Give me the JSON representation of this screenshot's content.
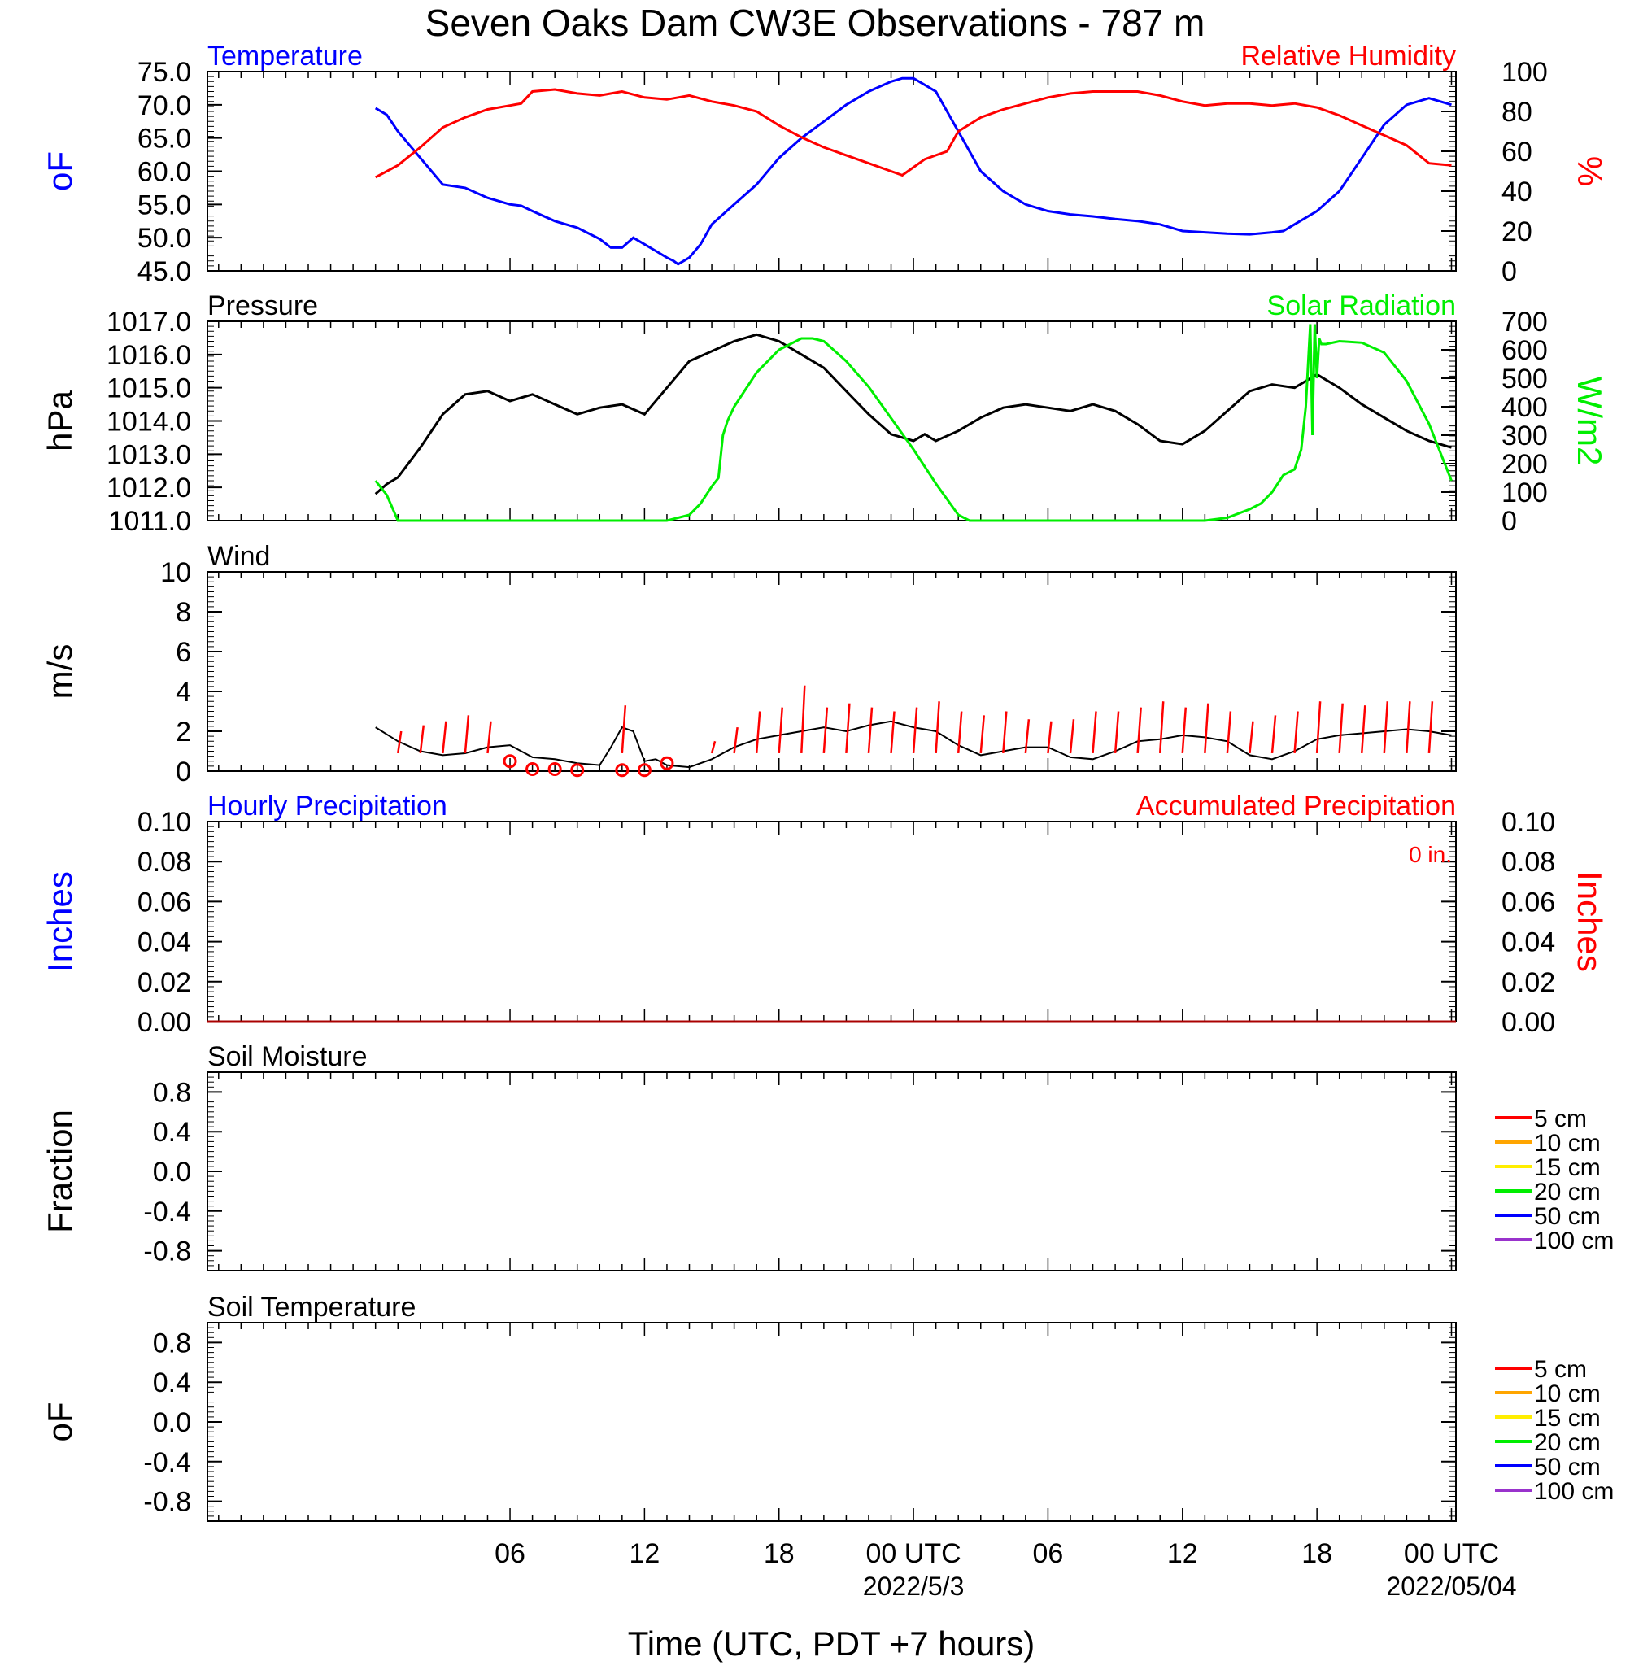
{
  "chart_data": {
    "type": "line",
    "title": "Seven Oaks Dam CW3E Observations - 787 m",
    "xlabel": "Time (UTC, PDT +7 hours)",
    "x_range_hours": [
      -7.5,
      48.2
    ],
    "x_ticks": [
      {
        "h": 6,
        "label": "06",
        "date": ""
      },
      {
        "h": 12,
        "label": "12",
        "date": ""
      },
      {
        "h": 18,
        "label": "18",
        "date": ""
      },
      {
        "h": 24,
        "label": "00 UTC",
        "date": "2022/5/3"
      },
      {
        "h": 30,
        "label": "06",
        "date": ""
      },
      {
        "h": 36,
        "label": "12",
        "date": ""
      },
      {
        "h": 42,
        "label": "18",
        "date": ""
      },
      {
        "h": 48,
        "label": "00 UTC",
        "date": "2022/05/04"
      }
    ],
    "panels": [
      {
        "id": "temperature",
        "left_title": "Temperature",
        "left_title_color": "#0000ff",
        "right_title": "Relative Humidity",
        "right_title_color": "#ff0000",
        "ylabel_left": "oF",
        "ylabel_left_color": "#0000ff",
        "ylabel_right": "%",
        "ylabel_right_color": "#ff0000",
        "ylim_left": [
          45,
          75
        ],
        "yticks_left": [
          "45.0",
          "50.0",
          "55.0",
          "60.0",
          "65.0",
          "70.0",
          "75.0"
        ],
        "ylim_right": [
          0,
          100
        ],
        "yticks_right": [
          "0",
          "20",
          "40",
          "60",
          "80",
          "100"
        ],
        "series": [
          {
            "name": "Temperature",
            "axis": "left",
            "color": "#0000ff",
            "x": [
              0,
              0.5,
              1,
              1.5,
              2,
              2.5,
              3,
              4,
              5,
              6,
              6.5,
              7,
              8,
              9,
              10,
              10.5,
              11,
              11.5,
              12,
              12.5,
              13,
              13.3,
              13.5,
              14,
              14.5,
              15,
              16,
              17,
              18,
              19,
              20,
              21,
              22,
              23,
              23.5,
              24,
              24.5,
              25,
              25.5,
              26,
              27,
              28,
              29,
              30,
              31,
              32,
              33,
              34,
              35,
              36,
              37,
              38,
              39,
              40,
              40.5,
              41,
              42,
              43,
              44,
              45,
              46,
              47,
              48
            ],
            "values": [
              69.5,
              68.5,
              66,
              64,
              62,
              60,
              58,
              57.5,
              56,
              55,
              54.8,
              54,
              52.5,
              51.5,
              49.8,
              48.5,
              48.5,
              50,
              49,
              48,
              47,
              46.5,
              46,
              47,
              49,
              52,
              55,
              58,
              62,
              65,
              67.5,
              70,
              72,
              73.5,
              74,
              74,
              73,
              72,
              69,
              66,
              60,
              57,
              55,
              54,
              53.5,
              53.2,
              52.8,
              52.5,
              52,
              51,
              50.8,
              50.6,
              50.5,
              50.8,
              51,
              52,
              54,
              57,
              62,
              67,
              70,
              71,
              70
            ]
          },
          {
            "name": "Relative Humidity",
            "axis": "right",
            "color": "#ff0000",
            "x": [
              0,
              1,
              2,
              3,
              4,
              5,
              6,
              6.5,
              7,
              8,
              9,
              10,
              11,
              12,
              13,
              14,
              15,
              16,
              17,
              18,
              19,
              20,
              21,
              22,
              23,
              23.5,
              24,
              24.5,
              25,
              25.5,
              26,
              27,
              28,
              29,
              30,
              31,
              32,
              33,
              34,
              35,
              36,
              37,
              38,
              39,
              40,
              41,
              42,
              43,
              44,
              45,
              46,
              47,
              48
            ],
            "values": [
              47,
              53,
              62,
              72,
              77,
              81,
              83,
              84,
              90,
              91,
              89,
              88,
              90,
              87,
              86,
              88,
              85,
              83,
              80,
              73,
              67,
              62,
              58,
              54,
              50,
              48,
              52,
              56,
              58,
              60,
              70,
              77,
              81,
              84,
              87,
              89,
              90,
              90,
              90,
              88,
              85,
              83,
              84,
              84,
              83,
              84,
              82,
              78,
              73,
              68,
              63,
              54,
              53
            ]
          }
        ]
      },
      {
        "id": "pressure",
        "left_title": "Pressure",
        "left_title_color": "#000000",
        "right_title": "Solar Radiation",
        "right_title_color": "#00ee00",
        "ylabel_left": "hPa",
        "ylabel_left_color": "#000000",
        "ylabel_right": "W/m2",
        "ylabel_right_color": "#00ee00",
        "ylim_left": [
          1011,
          1017
        ],
        "yticks_left": [
          "1011.0",
          "1012.0",
          "1013.0",
          "1014.0",
          "1015.0",
          "1016.0",
          "1017.0"
        ],
        "ylim_right": [
          0,
          700
        ],
        "yticks_right": [
          "0",
          "100",
          "200",
          "300",
          "400",
          "500",
          "600",
          "700"
        ],
        "series": [
          {
            "name": "Pressure",
            "axis": "left",
            "color": "#000000",
            "x": [
              0,
              0.5,
              1,
              2,
              3,
              4,
              5,
              6,
              7,
              8,
              9,
              10,
              11,
              12,
              13,
              14,
              15,
              16,
              17,
              18,
              19,
              20,
              21,
              22,
              23,
              24,
              24.5,
              25,
              26,
              27,
              28,
              29,
              30,
              31,
              32,
              33,
              34,
              35,
              36,
              37,
              38,
              39,
              40,
              41,
              42,
              43,
              44,
              45,
              46,
              47,
              48
            ],
            "values": [
              1011.8,
              1012.1,
              1012.3,
              1013.2,
              1014.2,
              1014.8,
              1014.9,
              1014.6,
              1014.8,
              1014.5,
              1014.2,
              1014.4,
              1014.5,
              1014.2,
              1015.0,
              1015.8,
              1016.1,
              1016.4,
              1016.6,
              1016.4,
              1016,
              1015.6,
              1014.9,
              1014.2,
              1013.6,
              1013.4,
              1013.6,
              1013.4,
              1013.7,
              1014.1,
              1014.4,
              1014.5,
              1014.4,
              1014.3,
              1014.5,
              1014.3,
              1013.9,
              1013.4,
              1013.3,
              1013.7,
              1014.3,
              1014.9,
              1015.1,
              1015.0,
              1015.4,
              1015.0,
              1014.5,
              1014.1,
              1013.7,
              1013.4,
              1013.2
            ]
          },
          {
            "name": "Solar Radiation",
            "axis": "right",
            "color": "#00ee00",
            "x": [
              0,
              0.5,
              1,
              1.5,
              2,
              5,
              8,
              10,
              12,
              13,
              14,
              14.5,
              15,
              15.3,
              15.5,
              15.7,
              16,
              17,
              18,
              19,
              19.5,
              20,
              21,
              22,
              23,
              24,
              25,
              26,
              26.5,
              27,
              30,
              33,
              36,
              37,
              38,
              39,
              39.5,
              40,
              40.5,
              41,
              41.3,
              41.5,
              41.7,
              41.8,
              41.9,
              42.0,
              42.1,
              42.2,
              42.4,
              43,
              44,
              45,
              46,
              47,
              48
            ],
            "values": [
              140,
              90,
              0,
              0,
              0,
              0,
              0,
              0,
              0,
              0,
              20,
              60,
              120,
              150,
              300,
              350,
              400,
              520,
              600,
              640,
              640,
              630,
              560,
              470,
              360,
              250,
              130,
              20,
              0,
              0,
              0,
              0,
              0,
              0,
              10,
              40,
              60,
              100,
              160,
              180,
              250,
              400,
              690,
              300,
              690,
              500,
              640,
              620,
              620,
              630,
              625,
              590,
              490,
              340,
              140
            ]
          }
        ]
      },
      {
        "id": "wind",
        "left_title": "Wind",
        "left_title_color": "#000000",
        "ylabel_left": "m/s",
        "ylabel_left_color": "#000000",
        "ylim_left": [
          0,
          10
        ],
        "yticks_left": [
          "0",
          "2",
          "4",
          "6",
          "8",
          "10"
        ],
        "series": [
          {
            "name": "Wind",
            "axis": "left",
            "color": "#000000",
            "x": [
              0,
              1,
              2,
              3,
              4,
              5,
              6,
              7,
              8,
              9,
              10,
              10.5,
              11,
              11.5,
              12,
              12.5,
              13,
              14,
              15,
              16,
              17,
              18,
              19,
              20,
              21,
              22,
              23,
              24,
              25,
              26,
              27,
              28,
              29,
              30,
              31,
              32,
              33,
              34,
              35,
              36,
              37,
              38,
              39,
              40,
              41,
              42,
              43,
              44,
              45,
              46,
              47,
              48
            ],
            "values": [
              2.2,
              1.5,
              1.0,
              0.8,
              0.9,
              1.2,
              1.3,
              0.7,
              0.6,
              0.4,
              0.3,
              1.2,
              2.2,
              2.0,
              0.5,
              0.6,
              0.3,
              0.2,
              0.6,
              1.2,
              1.6,
              1.8,
              2.0,
              2.2,
              2.0,
              2.3,
              2.5,
              2.2,
              2.0,
              1.3,
              0.8,
              1.0,
              1.2,
              1.2,
              0.7,
              0.6,
              1.0,
              1.5,
              1.6,
              1.8,
              1.7,
              1.5,
              0.8,
              0.6,
              1.0,
              1.6,
              1.8,
              1.9,
              2.0,
              2.1,
              2.0,
              1.8
            ]
          },
          {
            "name": "Wind barbs",
            "axis": "left",
            "color": "#ff0000",
            "x": [
              1,
              2,
              3,
              4,
              5,
              11,
              15,
              16,
              17,
              18,
              19,
              20,
              21,
              22,
              23,
              24,
              25,
              26,
              27,
              28,
              29,
              30,
              31,
              32,
              33,
              34,
              35,
              36,
              37,
              38,
              39,
              40,
              41,
              42,
              43,
              44,
              45,
              46,
              47
            ],
            "values": [
              2.0,
              2.3,
              2.5,
              2.8,
              2.5,
              3.3,
              1.5,
              2.2,
              3.0,
              3.2,
              4.3,
              3.2,
              3.4,
              3.2,
              3.0,
              3.2,
              3.5,
              3.0,
              2.8,
              3.0,
              2.6,
              2.5,
              2.6,
              3.0,
              3.0,
              3.2,
              3.5,
              3.2,
              3.4,
              3.0,
              2.5,
              2.8,
              3.0,
              3.5,
              3.4,
              3.3,
              3.5,
              3.5,
              3.5
            ]
          },
          {
            "name": "Calm",
            "axis": "left",
            "color": "#ff0000",
            "x": [
              6,
              7,
              8,
              9,
              11,
              12,
              13
            ],
            "values": [
              0.5,
              0.1,
              0.1,
              0.05,
              0.05,
              0.05,
              0.4
            ]
          }
        ]
      },
      {
        "id": "precip",
        "left_title": "Hourly Precipitation",
        "left_title_color": "#0000ff",
        "right_title": "Accumulated Precipitation",
        "right_title_color": "#ff0000",
        "right_note": "0 in.",
        "ylabel_left": "Inches",
        "ylabel_left_color": "#0000ff",
        "ylabel_right": "Inches",
        "ylabel_right_color": "#ff0000",
        "ylim_left": [
          0,
          0.1
        ],
        "yticks_left": [
          "0.00",
          "0.02",
          "0.04",
          "0.06",
          "0.08",
          "0.10"
        ],
        "ylim_right": [
          0,
          0.1
        ],
        "yticks_right": [
          "0.00",
          "0.02",
          "0.04",
          "0.06",
          "0.08",
          "0.10"
        ],
        "series": [
          {
            "name": "Accumulated Precipitation",
            "axis": "left",
            "color": "#aa0000",
            "x": [
              -7.5,
              48.2
            ],
            "values": [
              0,
              0
            ]
          }
        ]
      },
      {
        "id": "soil_moisture",
        "left_title": "Soil Moisture",
        "left_title_color": "#000000",
        "ylabel_left": "Fraction",
        "ylabel_left_color": "#000000",
        "ylim_left": [
          -1,
          1
        ],
        "yticks_left": [
          "-0.8",
          "-0.4",
          "0.0",
          "0.4",
          "0.8"
        ],
        "ytick_values": [
          -0.8,
          -0.4,
          0,
          0.4,
          0.8
        ],
        "legend": [
          {
            "label": "5 cm",
            "color": "#ff0000"
          },
          {
            "label": "10 cm",
            "color": "#ffa500"
          },
          {
            "label": "15 cm",
            "color": "#ffee00"
          },
          {
            "label": "20 cm",
            "color": "#00ee00"
          },
          {
            "label": "50 cm",
            "color": "#0000ff"
          },
          {
            "label": "100 cm",
            "color": "#9933cc"
          }
        ],
        "series": []
      },
      {
        "id": "soil_temperature",
        "left_title": "Soil Temperature",
        "left_title_color": "#000000",
        "ylabel_left": "oF",
        "ylabel_left_color": "#000000",
        "ylim_left": [
          -1,
          1
        ],
        "yticks_left": [
          "-0.8",
          "-0.4",
          "0.0",
          "0.4",
          "0.8"
        ],
        "ytick_values": [
          -0.8,
          -0.4,
          0,
          0.4,
          0.8
        ],
        "legend": [
          {
            "label": "5 cm",
            "color": "#ff0000"
          },
          {
            "label": "10 cm",
            "color": "#ffa500"
          },
          {
            "label": "15 cm",
            "color": "#ffee00"
          },
          {
            "label": "20 cm",
            "color": "#00ee00"
          },
          {
            "label": "50 cm",
            "color": "#0000ff"
          },
          {
            "label": "100 cm",
            "color": "#9933cc"
          }
        ],
        "series": []
      }
    ]
  }
}
